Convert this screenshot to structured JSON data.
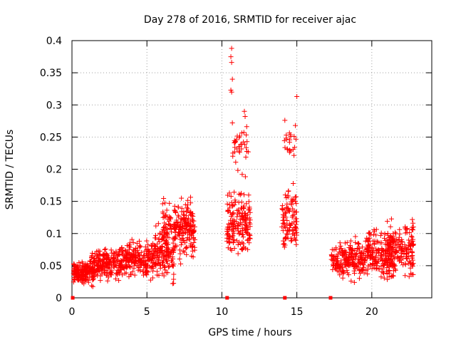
{
  "chart_data": {
    "type": "scatter",
    "title": "Day 278 of 2016, SRMTID for receiver ajac",
    "xlabel": "GPS time / hours",
    "ylabel": "SRMTID / TECUs",
    "xlim": [
      0,
      24
    ],
    "ylim": [
      0,
      0.4
    ],
    "xticks": [
      0,
      5,
      10,
      15,
      20
    ],
    "xtick_labels": [
      "0",
      "5",
      "10",
      "15",
      "20"
    ],
    "yticks": [
      0,
      0.05,
      0.1,
      0.15,
      0.2,
      0.25,
      0.3,
      0.35,
      0.4
    ],
    "ytick_labels": [
      "0",
      "0.05",
      "0.1",
      "0.15",
      "0.2",
      "0.25",
      "0.3",
      "0.35",
      "0.4"
    ],
    "grid": true,
    "marker": "plus",
    "marker_color": "#ff0000",
    "clusters": [
      {
        "x_range": [
          0.1,
          1.5
        ],
        "y_range": [
          0.015,
          0.065
        ],
        "count": 180
      },
      {
        "x_range": [
          1.3,
          3.5
        ],
        "y_range": [
          0.02,
          0.09
        ],
        "count": 220
      },
      {
        "x_range": [
          3.5,
          5.5
        ],
        "y_range": [
          0.02,
          0.1
        ],
        "count": 200
      },
      {
        "x_range": [
          5.5,
          6.8
        ],
        "y_range": [
          0.015,
          0.13
        ],
        "count": 160
      },
      {
        "x_range": [
          6.0,
          6.6
        ],
        "y_range": [
          0.08,
          0.165
        ],
        "count": 30
      },
      {
        "x_range": [
          6.8,
          8.2
        ],
        "y_range": [
          0.05,
          0.165
        ],
        "count": 180
      },
      {
        "x_range": [
          10.3,
          11.9
        ],
        "y_range": [
          0.05,
          0.18
        ],
        "count": 180
      },
      {
        "x_range": [
          10.7,
          11.8
        ],
        "y_range": [
          0.18,
          0.29
        ],
        "count": 35
      },
      {
        "x_range": [
          14.0,
          15.0
        ],
        "y_range": [
          0.05,
          0.2
        ],
        "count": 100
      },
      {
        "x_range": [
          14.1,
          15.0
        ],
        "y_range": [
          0.2,
          0.28
        ],
        "count": 20
      },
      {
        "x_range": [
          17.3,
          19.5
        ],
        "y_range": [
          0.02,
          0.1
        ],
        "count": 220
      },
      {
        "x_range": [
          19.5,
          21.5
        ],
        "y_range": [
          0.02,
          0.12
        ],
        "count": 200
      },
      {
        "x_range": [
          21.0,
          22.8
        ],
        "y_range": [
          0.02,
          0.135
        ],
        "count": 180
      }
    ],
    "outliers": [
      {
        "x": 10.65,
        "y": 0.388
      },
      {
        "x": 10.6,
        "y": 0.375
      },
      {
        "x": 10.65,
        "y": 0.366
      },
      {
        "x": 10.7,
        "y": 0.34
      },
      {
        "x": 10.6,
        "y": 0.323
      },
      {
        "x": 10.65,
        "y": 0.32
      },
      {
        "x": 15.0,
        "y": 0.313
      },
      {
        "x": 11.5,
        "y": 0.29
      },
      {
        "x": 11.55,
        "y": 0.282
      },
      {
        "x": 14.2,
        "y": 0.276
      },
      {
        "x": 10.7,
        "y": 0.272
      },
      {
        "x": 14.9,
        "y": 0.268
      }
    ],
    "baseline_markers": [
      0.05,
      10.35,
      14.2,
      17.25
    ]
  }
}
